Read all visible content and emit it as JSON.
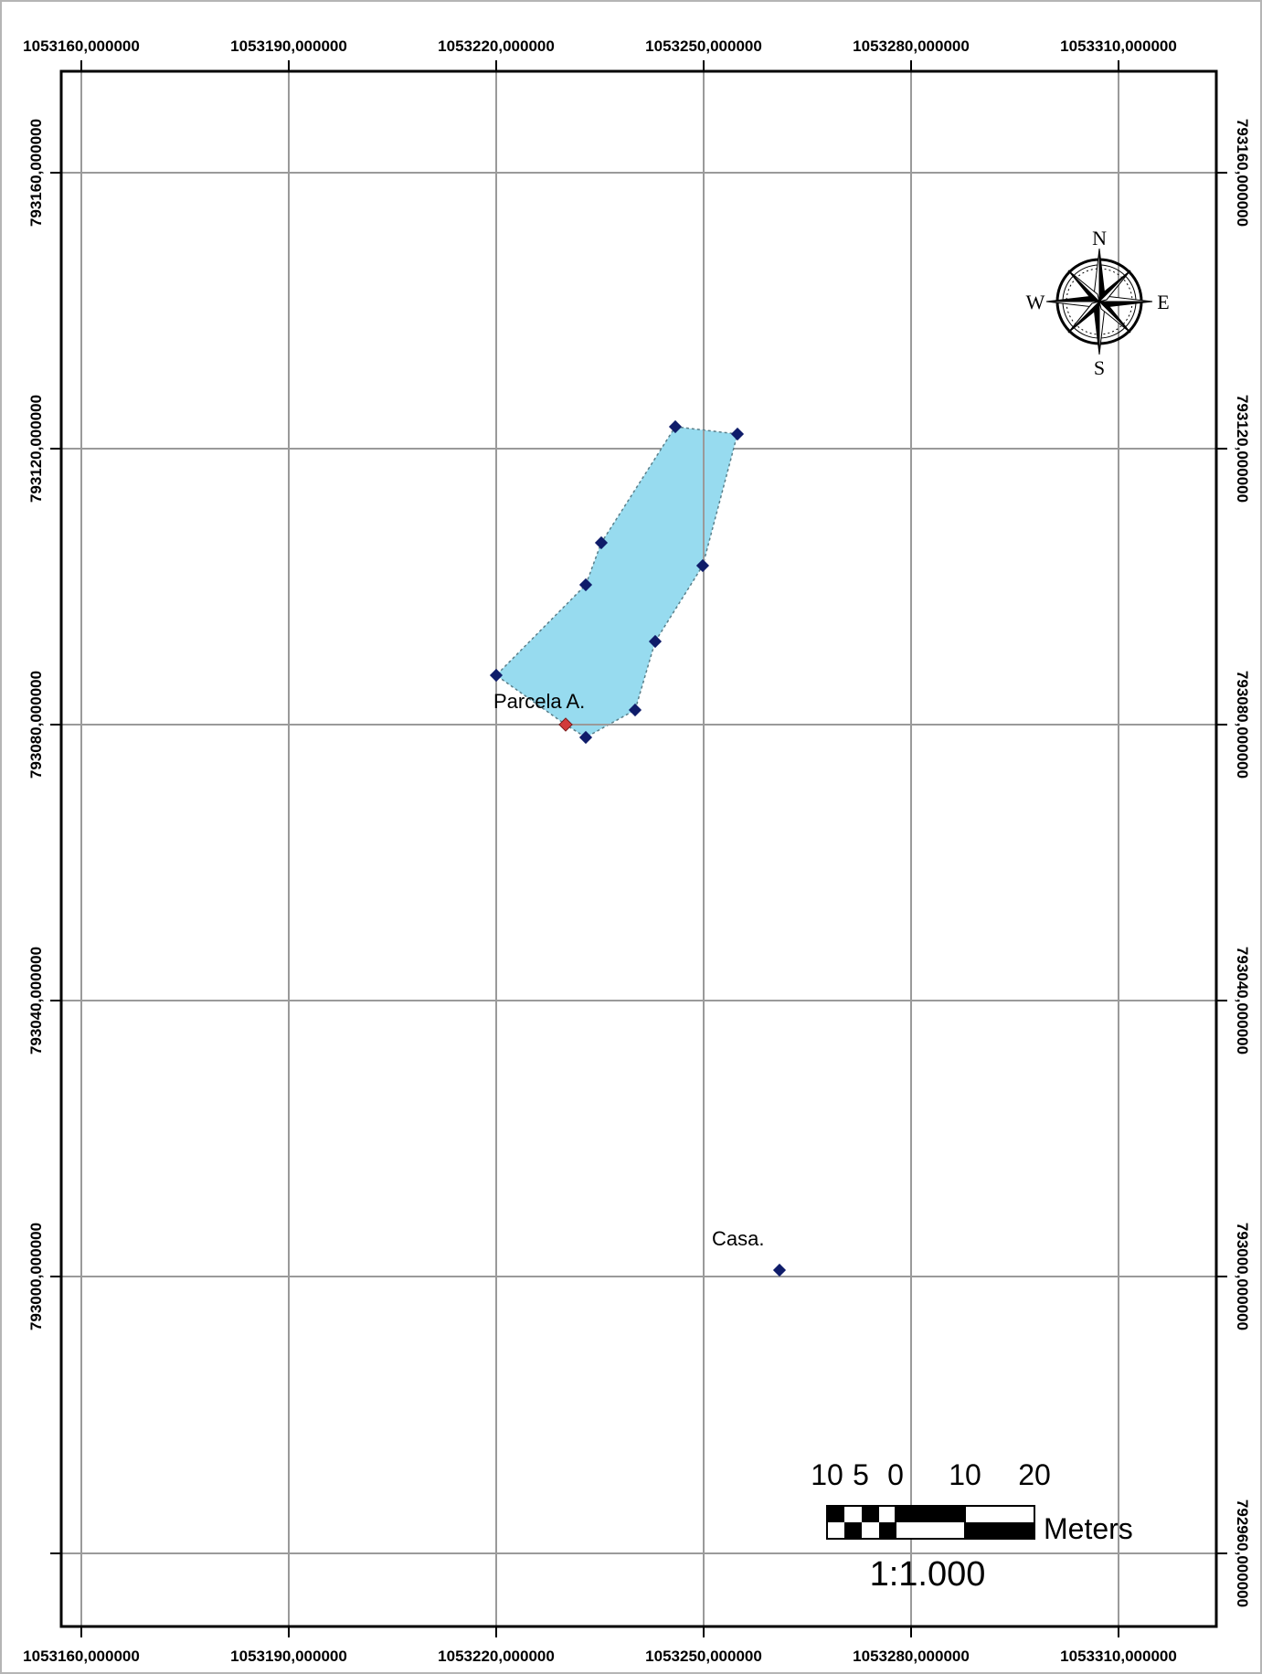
{
  "map": {
    "x_labels": [
      "1053160,000000",
      "1053190,000000",
      "1053220,000000",
      "1053250,000000",
      "1053280,000000",
      "1053310,000000"
    ],
    "y_labels": [
      "793160,000000",
      "793120,000000",
      "793080,000000",
      "793040,000000",
      "793000,000000",
      "792960,000000"
    ],
    "features": [
      {
        "name": "parcela",
        "label": "Parcela A.",
        "fill": "#97dbef"
      },
      {
        "name": "casa",
        "label": "Casa."
      }
    ],
    "compass": {
      "n": "N",
      "s": "S",
      "e": "E",
      "w": "W"
    },
    "scalebar": {
      "ticks": [
        "10",
        "5",
        "0",
        "10",
        "20"
      ],
      "unit": "Meters",
      "ratio": "1:1.000"
    },
    "colors": {
      "grid": "#9a9a9a",
      "vertex": "#0f1c6a",
      "label_point": "#d23b3b",
      "polygon_fill": "#97dbef",
      "neatline": "#000000"
    }
  }
}
